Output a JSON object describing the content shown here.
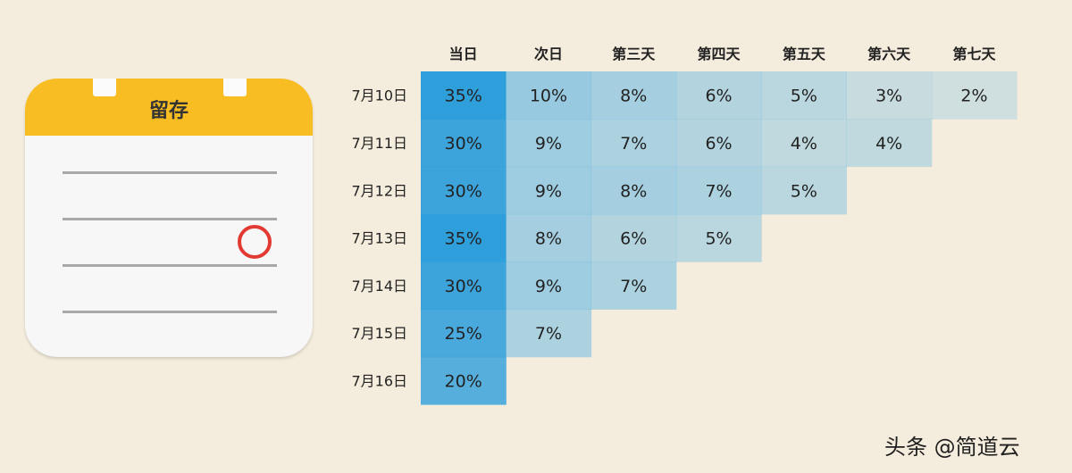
{
  "notepad": {
    "title": "留存",
    "icon": "notepad-icon",
    "colors": {
      "header": "#f8bd23",
      "mark": "#e23a32"
    }
  },
  "chart_data": {
    "type": "heatmap",
    "title": "",
    "columns": [
      "当日",
      "次日",
      "第三天",
      "第四天",
      "第五天",
      "第六天",
      "第七天"
    ],
    "rows": [
      "7月10日",
      "7月11日",
      "7月12日",
      "7月13日",
      "7月14日",
      "7月15日",
      "7月16日"
    ],
    "values": [
      [
        35,
        10,
        8,
        6,
        5,
        3,
        2
      ],
      [
        30,
        9,
        7,
        6,
        4,
        4
      ],
      [
        30,
        9,
        8,
        7,
        5
      ],
      [
        35,
        8,
        6,
        5
      ],
      [
        30,
        9,
        7
      ],
      [
        25,
        7
      ],
      [
        20
      ]
    ],
    "value_suffix": "%",
    "colors": {
      "first_column": "#2f9fdb",
      "scale": "#74bde2"
    }
  },
  "watermark": "头条 @简道云"
}
